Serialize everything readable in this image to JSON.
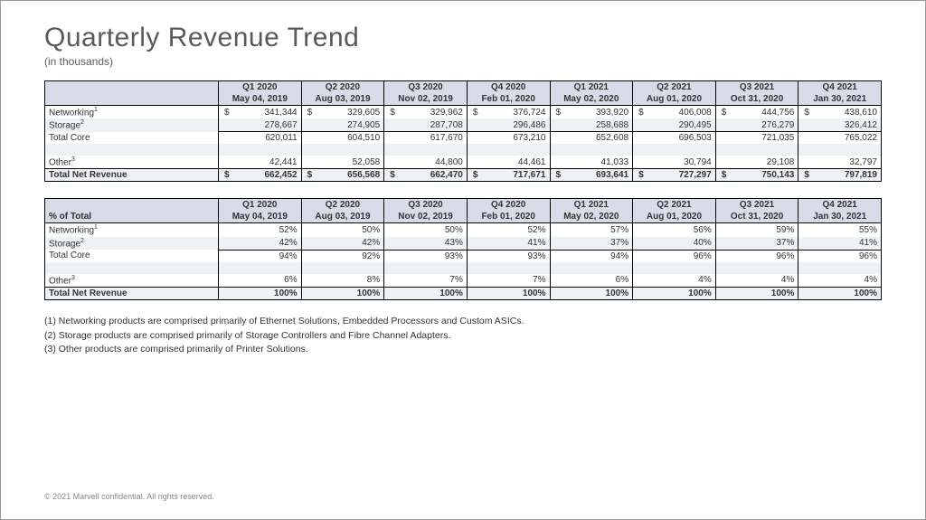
{
  "title": "Quarterly Revenue Trend",
  "subtitle": "(in thousands)",
  "periods": [
    {
      "q": "Q1 2020",
      "d": "May 04, 2019"
    },
    {
      "q": "Q2 2020",
      "d": "Aug 03, 2019"
    },
    {
      "q": "Q3 2020",
      "d": "Nov 02, 2019"
    },
    {
      "q": "Q4 2020",
      "d": "Feb 01, 2020"
    },
    {
      "q": "Q1 2021",
      "d": "May 02, 2020"
    },
    {
      "q": "Q2 2021",
      "d": "Aug 01, 2020"
    },
    {
      "q": "Q3 2021",
      "d": "Oct 31, 2020"
    },
    {
      "q": "Q4 2021",
      "d": "Jan 30, 2021"
    }
  ],
  "currency_symbol": "$",
  "table1": {
    "rows": {
      "networking": {
        "label": "Networking",
        "sup": "1",
        "vals": [
          "341,344",
          "329,605",
          "329,962",
          "376,724",
          "393,920",
          "406,008",
          "444,756",
          "438,610"
        ],
        "show_cur": true
      },
      "storage": {
        "label": "Storage",
        "sup": "2",
        "vals": [
          "278,667",
          "274,905",
          "287,708",
          "296,486",
          "258,688",
          "290,495",
          "276,279",
          "326,412"
        ],
        "show_cur": false
      },
      "totalcore": {
        "label": "Total Core",
        "sup": "",
        "vals": [
          "620,011",
          "604,510",
          "617,670",
          "673,210",
          "652,608",
          "696,503",
          "721,035",
          "765,022"
        ],
        "show_cur": false
      },
      "other": {
        "label": "Other",
        "sup": "3",
        "vals": [
          "42,441",
          "52,058",
          "44,800",
          "44,461",
          "41,033",
          "30,794",
          "29,108",
          "32,797"
        ],
        "show_cur": false
      },
      "totalnet": {
        "label": "Total Net Revenue",
        "sup": "",
        "vals": [
          "662,452",
          "656,568",
          "662,470",
          "717,671",
          "693,641",
          "727,297",
          "750,143",
          "797,819"
        ],
        "show_cur": true
      }
    }
  },
  "table2": {
    "header_label": "% of Total",
    "rows": {
      "networking": {
        "label": "Networking",
        "sup": "1",
        "vals": [
          "52%",
          "50%",
          "50%",
          "52%",
          "57%",
          "56%",
          "59%",
          "55%"
        ]
      },
      "storage": {
        "label": "Storage",
        "sup": "2",
        "vals": [
          "42%",
          "42%",
          "43%",
          "41%",
          "37%",
          "40%",
          "37%",
          "41%"
        ]
      },
      "totalcore": {
        "label": "Total Core",
        "sup": "",
        "vals": [
          "94%",
          "92%",
          "93%",
          "93%",
          "94%",
          "96%",
          "96%",
          "96%"
        ]
      },
      "other": {
        "label": "Other",
        "sup": "3",
        "vals": [
          "6%",
          "8%",
          "7%",
          "7%",
          "6%",
          "4%",
          "4%",
          "4%"
        ]
      },
      "totalnet": {
        "label": "Total Net Revenue",
        "sup": "",
        "vals": [
          "100%",
          "100%",
          "100%",
          "100%",
          "100%",
          "100%",
          "100%",
          "100%"
        ]
      }
    }
  },
  "footnotes": [
    "(1) Networking products are comprised primarily of Ethernet Solutions, Embedded Processors and Custom ASICs.",
    "(2) Storage products are comprised primarily of Storage Controllers and Fibre Channel Adapters.",
    "(3) Other products are comprised primarily of Printer Solutions."
  ],
  "copyright": "© 2021 Marvell confidential.  All rights reserved.",
  "colors": {
    "header_bg": "#d6dde8",
    "stripe_even": "#eef2f7",
    "stripe_odd": "#ffffff",
    "border": "#000000",
    "text": "#333333",
    "title": "#5a5a5a"
  }
}
